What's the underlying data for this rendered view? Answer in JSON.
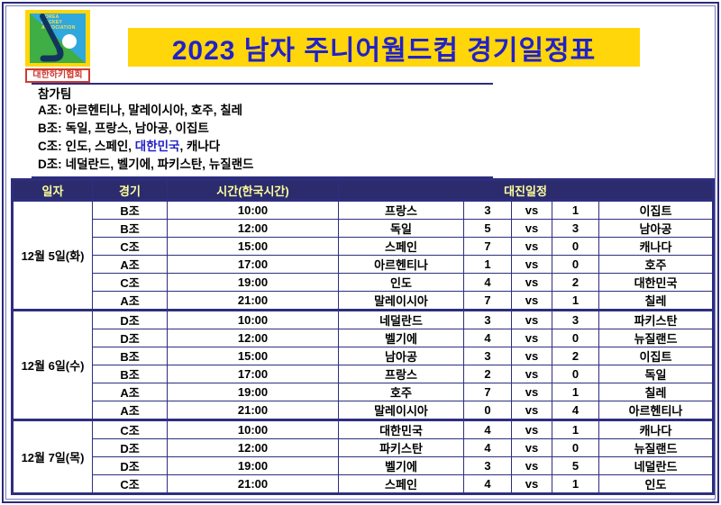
{
  "logo": {
    "org_en_lines": [
      "KOREA",
      "HOCKEY",
      "ASSOCIATION"
    ],
    "org_kr": "대한하키협회"
  },
  "title": "2023 남자 주니어월드컵 경기일정표",
  "participants": {
    "heading": "참가팀",
    "groups": [
      {
        "label": "A조:",
        "pre": "아르헨티나, 말레이시아, 호주, 칠레",
        "highlight": "",
        "post": ""
      },
      {
        "label": "B조:",
        "pre": "독일, 프랑스, 남아공, 이집트",
        "highlight": "",
        "post": ""
      },
      {
        "label": "C조:",
        "pre": "인도, 스페인, ",
        "highlight": "대한민국",
        "post": ", 캐나다"
      },
      {
        "label": "D조:",
        "pre": "네덜란드, 벨기에, 파키스탄, 뉴질랜드",
        "highlight": "",
        "post": ""
      }
    ]
  },
  "schedule": {
    "headers": {
      "date": "일자",
      "group": "경기",
      "time": "시간(한국시간)",
      "matchup": "대진일정"
    },
    "vs_label": "vs",
    "days": [
      {
        "date": "12월 5일(화)",
        "matches": [
          {
            "group": "B조",
            "time": "10:00",
            "home": "프랑스",
            "home_score": "3",
            "away_score": "1",
            "away": "이집트"
          },
          {
            "group": "B조",
            "time": "12:00",
            "home": "독일",
            "home_score": "5",
            "away_score": "3",
            "away": "남아공"
          },
          {
            "group": "C조",
            "time": "15:00",
            "home": "스페인",
            "home_score": "7",
            "away_score": "0",
            "away": "캐나다"
          },
          {
            "group": "A조",
            "time": "17:00",
            "home": "아르헨티나",
            "home_score": "1",
            "away_score": "0",
            "away": "호주"
          },
          {
            "group": "C조",
            "time": "19:00",
            "home": "인도",
            "home_score": "4",
            "away_score": "2",
            "away": "대한민국"
          },
          {
            "group": "A조",
            "time": "21:00",
            "home": "말레이시아",
            "home_score": "7",
            "away_score": "1",
            "away": "칠레"
          }
        ]
      },
      {
        "date": "12월 6일(수)",
        "matches": [
          {
            "group": "D조",
            "time": "10:00",
            "home": "네덜란드",
            "home_score": "3",
            "away_score": "3",
            "away": "파키스탄"
          },
          {
            "group": "D조",
            "time": "12:00",
            "home": "벨기에",
            "home_score": "4",
            "away_score": "0",
            "away": "뉴질랜드"
          },
          {
            "group": "B조",
            "time": "15:00",
            "home": "남아공",
            "home_score": "3",
            "away_score": "2",
            "away": "이집트"
          },
          {
            "group": "B조",
            "time": "17:00",
            "home": "프랑스",
            "home_score": "2",
            "away_score": "0",
            "away": "독일"
          },
          {
            "group": "A조",
            "time": "19:00",
            "home": "호주",
            "home_score": "7",
            "away_score": "1",
            "away": "칠레"
          },
          {
            "group": "A조",
            "time": "21:00",
            "home": "말레이시아",
            "home_score": "0",
            "away_score": "4",
            "away": "아르헨티나"
          }
        ]
      },
      {
        "date": "12월 7일(목)",
        "matches": [
          {
            "group": "C조",
            "time": "10:00",
            "home": "대한민국",
            "home_score": "4",
            "away_score": "1",
            "away": "캐나다"
          },
          {
            "group": "D조",
            "time": "12:00",
            "home": "파키스탄",
            "home_score": "4",
            "away_score": "0",
            "away": "뉴질랜드"
          },
          {
            "group": "D조",
            "time": "19:00",
            "home": "벨기에",
            "home_score": "3",
            "away_score": "5",
            "away": "네덜란드"
          },
          {
            "group": "C조",
            "time": "21:00",
            "home": "스페인",
            "home_score": "4",
            "away_score": "1",
            "away": "인도"
          }
        ]
      }
    ]
  },
  "colors": {
    "navy_line": "#2e2e80",
    "header_bg": "#2b2b6e",
    "header_text": "#ffff9c",
    "title_bg": "#ffd60a",
    "title_text": "#2121c8",
    "highlight_text": "#2121c8",
    "logo_red": "#d03a30"
  }
}
